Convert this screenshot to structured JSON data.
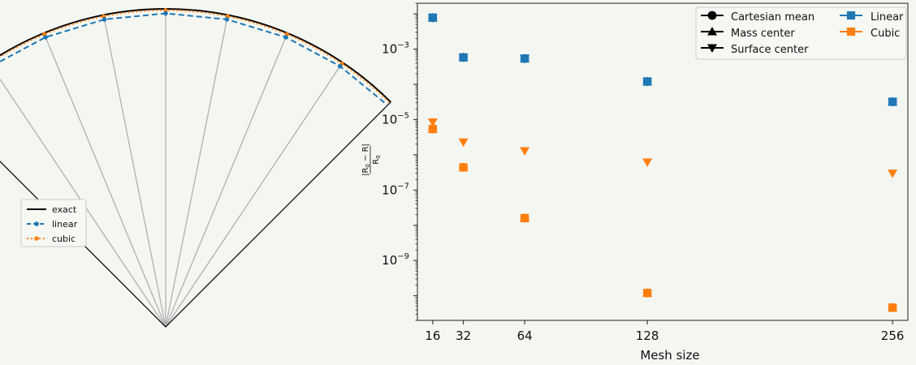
{
  "colors": {
    "linear": "#1f77b4",
    "cubic": "#ff7f0e",
    "exact": "#000000",
    "spoke": "#b0b0b0",
    "background": "#f4f6f2"
  },
  "chart_data": [
    {
      "type": "line",
      "xlabel": "",
      "ylabel": "",
      "grid": false,
      "legend_placement": "center-left",
      "legend": [
        {
          "label": "exact",
          "style": "solid",
          "color": "#000000"
        },
        {
          "label": "linear",
          "style": "dashed",
          "marker": "circle",
          "color": "#1f77b4"
        },
        {
          "label": "cubic",
          "style": "dotted",
          "marker": "circle",
          "color": "#ff7f0e"
        }
      ],
      "spokes": 8,
      "sector_half_angle_deg": 45
    },
    {
      "type": "scatter",
      "xlabel": "Mesh size",
      "ylabel": "|R0 − R| / R0",
      "ylabel_parts": {
        "num_a": "|R",
        "num_sub_a": "0",
        "num_b": " − R|",
        "den": "R",
        "den_sub": "0"
      },
      "yscale": "log",
      "ylim": [
        2e-11,
        0.02
      ],
      "xlim": [
        8,
        264
      ],
      "xticks": [
        16,
        32,
        64,
        128,
        256
      ],
      "xtick_labels": [
        "16",
        "32",
        "64",
        "128",
        "256"
      ],
      "yticks": [
        {
          "base": "10",
          "exp": "−3",
          "value": 0.001
        },
        {
          "base": "10",
          "exp": "−5",
          "value": 1e-05
        },
        {
          "base": "10",
          "exp": "−7",
          "value": 1e-07
        },
        {
          "base": "10",
          "exp": "−9",
          "value": 1e-09
        }
      ],
      "grid": false,
      "legend_placement": "top-right",
      "legend": {
        "markers": [
          {
            "label": "Cartesian mean",
            "marker": "circle"
          },
          {
            "label": "Mass center",
            "marker": "triangle-up"
          },
          {
            "label": "Surface center",
            "marker": "triangle-down"
          }
        ],
        "methods": [
          {
            "label": "Linear",
            "color": "#1f77b4"
          },
          {
            "label": "Cubic",
            "color": "#ff7f0e"
          }
        ]
      },
      "x": [
        16,
        32,
        64,
        128,
        256
      ],
      "series": [
        {
          "method": "linear",
          "marker": "circle",
          "values": [
            0.0078,
            0.00058,
            0.00054,
            0.00012,
            3.2e-05
          ]
        },
        {
          "method": "linear",
          "marker": "triangle-up",
          "values": [
            0.0078,
            0.00058,
            0.00054,
            0.00012,
            3.2e-05
          ]
        },
        {
          "method": "linear",
          "marker": "triangle-down",
          "values": [
            0.0078,
            0.00058,
            0.00054,
            0.00012,
            3.2e-05
          ]
        },
        {
          "method": "linear",
          "marker": "square",
          "values": [
            0.0078,
            0.00058,
            0.00054,
            0.00012,
            3.2e-05
          ]
        },
        {
          "method": "cubic",
          "marker": "circle",
          "values": [
            5.4e-06,
            4.4e-07,
            1.6e-08,
            1.2e-10,
            4.6e-11
          ]
        },
        {
          "method": "cubic",
          "marker": "triangle-up",
          "values": [
            5.4e-06,
            4.4e-07,
            1.6e-08,
            1.2e-10,
            4.6e-11
          ]
        },
        {
          "method": "cubic",
          "marker": "triangle-down",
          "values": [
            8.5e-06,
            2.3e-06,
            1.3e-06,
            6.2e-07,
            3e-07
          ]
        },
        {
          "method": "cubic",
          "marker": "square",
          "values": [
            5.4e-06,
            4.4e-07,
            1.6e-08,
            1.2e-10,
            4.6e-11
          ]
        }
      ]
    }
  ]
}
